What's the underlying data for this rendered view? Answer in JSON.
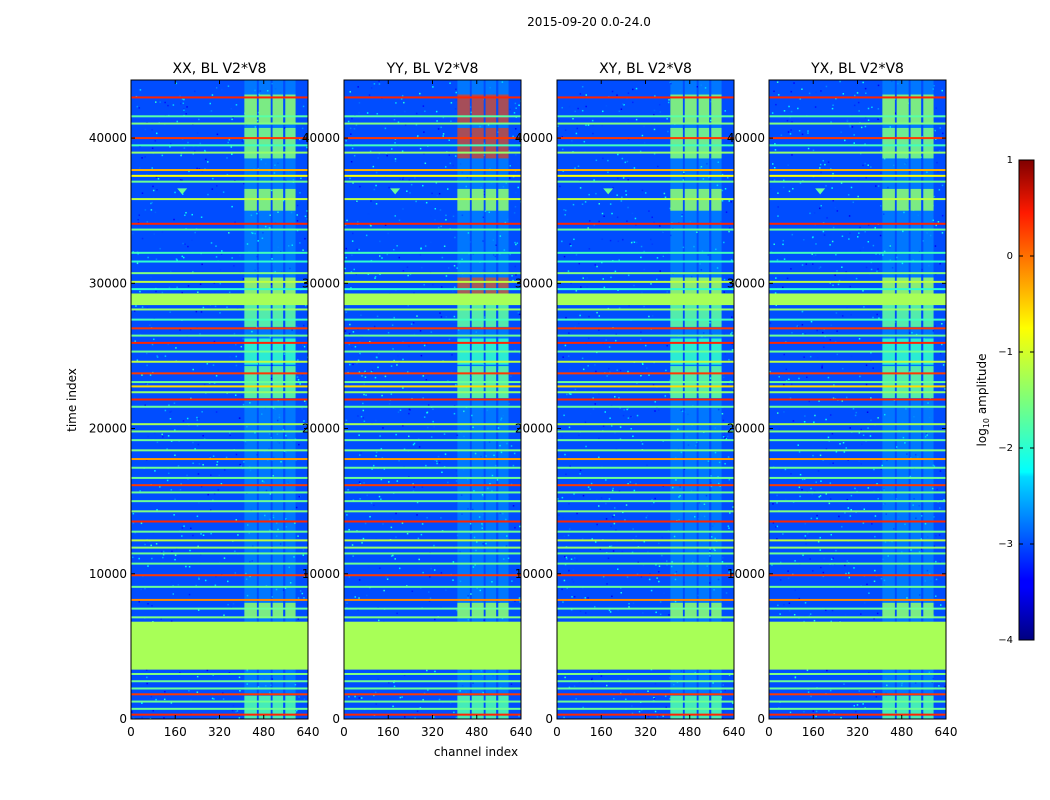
{
  "chart_data": {
    "type": "heatmap",
    "suptitle": "2015-09-20 0.0-24.0",
    "xlabel": "channel index",
    "ylabel": "time index",
    "xlim": [
      0,
      640
    ],
    "ylim": [
      0,
      44000
    ],
    "xticks": [
      0,
      160,
      320,
      480,
      640
    ],
    "yticks": [
      0,
      10000,
      20000,
      30000,
      40000
    ],
    "colormap": "jet",
    "colorbar": {
      "label": "log10 amplitude",
      "label_main": "log",
      "label_sub": "10",
      "label_tail": " amplitude",
      "range": [
        -4,
        1
      ],
      "ticks": [
        1,
        0,
        -1,
        -2,
        -3,
        -4
      ],
      "tick_labels": [
        "1",
        "0",
        "−1",
        "−2",
        "−3",
        "−4"
      ]
    },
    "panels": [
      {
        "title": "XX, BL V2*V8",
        "red_blocks": false
      },
      {
        "title": "YY, BL V2*V8",
        "red_blocks": true
      },
      {
        "title": "XY, BL V2*V8",
        "red_blocks": false
      },
      {
        "title": "YX, BL V2*V8",
        "red_blocks": false
      }
    ],
    "background_level": -3.0,
    "flagged_bands": [
      {
        "t0": 3400,
        "t1": 6700,
        "level": -1.3
      },
      {
        "t0": 28500,
        "t1": 29300,
        "level": -1.3
      }
    ],
    "rfi_lines": [
      {
        "t": 42800,
        "level": 0.2
      },
      {
        "t": 41500,
        "level": -1.7
      },
      {
        "t": 41000,
        "level": -1.5
      },
      {
        "t": 40000,
        "level": 0.1
      },
      {
        "t": 39500,
        "level": -1.8
      },
      {
        "t": 39000,
        "level": -1.4
      },
      {
        "t": 37800,
        "level": -0.5
      },
      {
        "t": 37400,
        "level": -0.9
      },
      {
        "t": 37000,
        "level": -1.6
      },
      {
        "t": 35800,
        "level": -1.2
      },
      {
        "t": 34100,
        "level": 0.2
      },
      {
        "t": 33700,
        "level": -1.6
      },
      {
        "t": 32100,
        "level": -1.8
      },
      {
        "t": 31500,
        "level": -1.9
      },
      {
        "t": 30700,
        "level": -1.5
      },
      {
        "t": 30100,
        "level": -1.2
      },
      {
        "t": 29600,
        "level": -1.9
      },
      {
        "t": 28200,
        "level": -1.4
      },
      {
        "t": 27500,
        "level": -1.8
      },
      {
        "t": 26900,
        "level": 0.1
      },
      {
        "t": 26400,
        "level": -1.6
      },
      {
        "t": 25900,
        "level": 0.2
      },
      {
        "t": 25300,
        "level": -1.6
      },
      {
        "t": 24600,
        "level": -1.2
      },
      {
        "t": 23800,
        "level": 0.1
      },
      {
        "t": 23200,
        "level": -1.6
      },
      {
        "t": 22900,
        "level": -0.7
      },
      {
        "t": 22500,
        "level": -1.4
      },
      {
        "t": 22000,
        "level": 0.2
      },
      {
        "t": 21500,
        "level": -1.6
      },
      {
        "t": 20300,
        "level": -1.3
      },
      {
        "t": 19800,
        "level": -1.5
      },
      {
        "t": 19200,
        "level": -1.6
      },
      {
        "t": 18500,
        "level": -1.5
      },
      {
        "t": 17900,
        "level": -0.4
      },
      {
        "t": 17300,
        "level": -1.6
      },
      {
        "t": 16600,
        "level": -1.6
      },
      {
        "t": 16100,
        "level": 0.1
      },
      {
        "t": 15600,
        "level": -1.6
      },
      {
        "t": 15000,
        "level": -1.6
      },
      {
        "t": 14300,
        "level": -1.5
      },
      {
        "t": 13600,
        "level": 0.2
      },
      {
        "t": 12900,
        "level": -1.6
      },
      {
        "t": 12300,
        "level": -1.2
      },
      {
        "t": 11800,
        "level": -1.4
      },
      {
        "t": 11400,
        "level": -1.6
      },
      {
        "t": 10700,
        "level": -1.6
      },
      {
        "t": 9900,
        "level": 0.1
      },
      {
        "t": 9100,
        "level": -1.6
      },
      {
        "t": 8200,
        "level": -0.3
      },
      {
        "t": 7600,
        "level": -1.6
      },
      {
        "t": 7000,
        "level": -1.5
      },
      {
        "t": 3100,
        "level": -1.5
      },
      {
        "t": 2600,
        "level": -1.6
      },
      {
        "t": 2100,
        "level": -1.6
      },
      {
        "t": 1700,
        "level": 0.1
      },
      {
        "t": 1200,
        "level": -1.6
      },
      {
        "t": 700,
        "level": -1.6
      },
      {
        "t": 300,
        "level": 0.2
      }
    ],
    "rfi_channel_blocks": [
      {
        "c0": 410,
        "c1": 455
      },
      {
        "c0": 462,
        "c1": 505
      },
      {
        "c0": 512,
        "c1": 550
      },
      {
        "c0": 558,
        "c1": 595
      }
    ],
    "rfi_time_blocks": [
      {
        "t0": 41000,
        "t1": 43000,
        "level": -1.2
      },
      {
        "t0": 38600,
        "t1": 40700,
        "level": -1.3
      },
      {
        "t0": 35000,
        "t1": 36500,
        "level": -1.2
      },
      {
        "t0": 29000,
        "t1": 30400,
        "level": -1.1
      },
      {
        "t0": 27000,
        "t1": 28800,
        "level": -1.5
      },
      {
        "t0": 24400,
        "t1": 26200,
        "level": -1.8
      },
      {
        "t0": 22100,
        "t1": 24300,
        "level": -1.5
      },
      {
        "t0": 7000,
        "t1": 8000,
        "level": -1.2
      },
      {
        "t0": 0,
        "t1": 1600,
        "level": -1.6
      }
    ],
    "rfi_feature": {
      "channel": 185,
      "time": 36400,
      "level": -1.6
    }
  }
}
